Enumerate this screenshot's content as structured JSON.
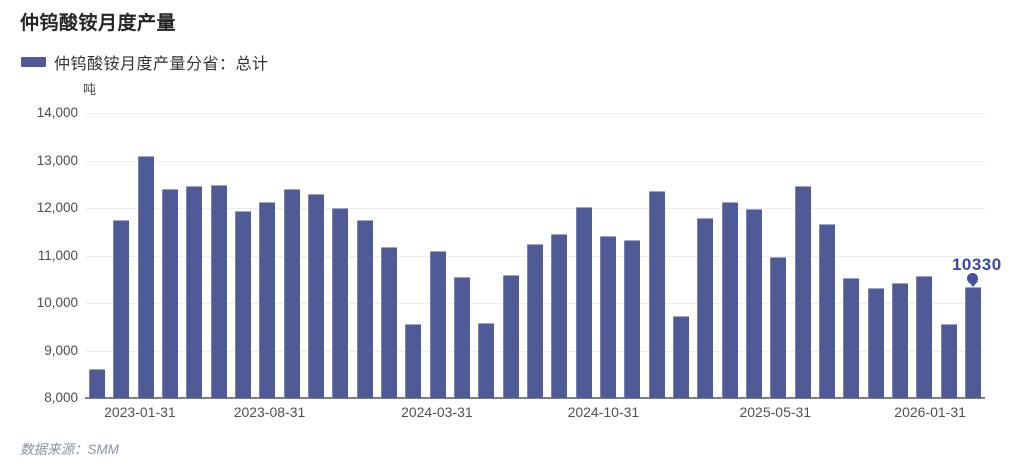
{
  "chart": {
    "title": "仲钨酸铵月度产量",
    "legend_label": "仲钨酸铵月度产量分省：总计",
    "unit": "吨",
    "source": "数据来源：SMM",
    "highlight_value": "10330"
  },
  "chart_data": {
    "type": "bar",
    "title": "仲钨酸铵月度产量",
    "series_name": "仲钨酸铵月度产量分省：总计",
    "ylabel": "吨",
    "ylim": [
      8000,
      14000
    ],
    "ytick_interval": 1000,
    "ytick_labels": [
      "8,000",
      "9,000",
      "10,000",
      "11,000",
      "12,000",
      "13,000",
      "14,000"
    ],
    "grid": true,
    "legend_position": "top-left",
    "values": [
      8620,
      11750,
      13100,
      12390,
      12470,
      12490,
      11930,
      12120,
      12400,
      12300,
      11990,
      11740,
      11180,
      9550,
      11090,
      10550,
      9580,
      10600,
      11250,
      11450,
      12020,
      11420,
      11320,
      12350,
      9730,
      11800,
      12120,
      11970,
      10960,
      12470,
      11670,
      10530,
      10320,
      10420,
      10570,
      9560,
      10330
    ],
    "x_axis_labels": [
      {
        "label": "2023-01-31",
        "pos": 0.061
      },
      {
        "label": "2023-08-31",
        "pos": 0.205
      },
      {
        "label": "2024-03-31",
        "pos": 0.391
      },
      {
        "label": "2024-10-31",
        "pos": 0.576
      },
      {
        "label": "2025-05-31",
        "pos": 0.767
      },
      {
        "label": "2026-01-31",
        "pos": 0.939
      }
    ],
    "last_point_label": "10330",
    "colors": {
      "bar": "#4f5b96",
      "highlight_text": "#3a48a0",
      "pin": "#46529e",
      "grid": "#ececf2",
      "axis": "#7a7e89"
    }
  }
}
